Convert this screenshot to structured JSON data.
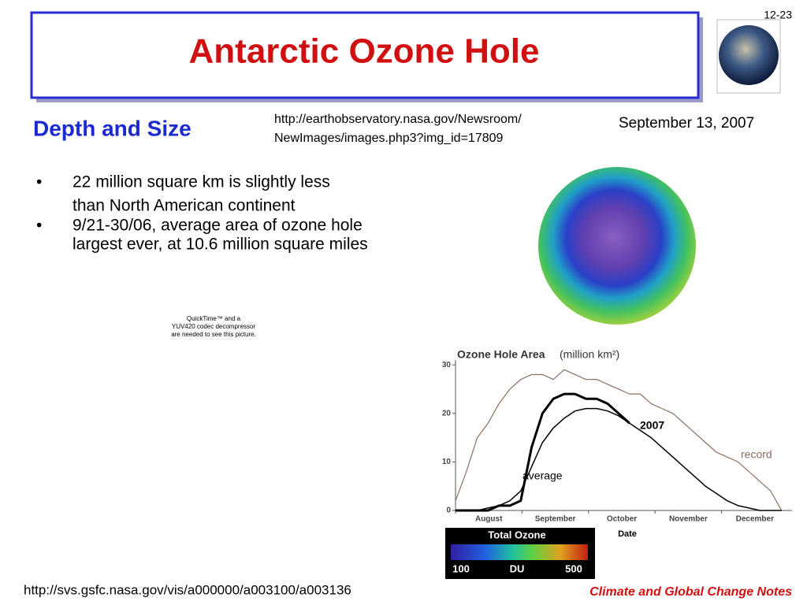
{
  "slide_number": "12-23",
  "title": "Antarctic Ozone Hole",
  "subtitle": "Depth and Size",
  "source_url": [
    "http://earthobservatory.nasa.gov/Newsroom/",
    "NewImages/images.php3?img_id=17809"
  ],
  "date": "September 13, 2007",
  "bullets": [
    {
      "marker": "•",
      "lines": [
        "22 million square km is slightly less",
        "than North American continent"
      ]
    },
    {
      "marker": "•",
      "lines": [
        "9/21-30/06, average area of ozone hole",
        "largest ever, at 10.6 million square miles"
      ]
    }
  ],
  "placeholder": [
    "QuickTime™ and a",
    "YUV420 codec decompressor",
    "are needed to see this picture."
  ],
  "chart_data": {
    "type": "line",
    "title": "Ozone Hole Area",
    "title_units": "(million km²)",
    "x_label": "Date",
    "categories": [
      "August",
      "September",
      "October",
      "November",
      "December"
    ],
    "xlim": [
      0,
      153
    ],
    "ylim": [
      0,
      31
    ],
    "yticks": [
      0,
      10,
      20,
      30
    ],
    "series": [
      {
        "name": "record",
        "color": "#8c6e62",
        "width": 1.2,
        "x": [
          0,
          5,
          10,
          15,
          20,
          25,
          30,
          35,
          40,
          45,
          50,
          55,
          60,
          65,
          70,
          75,
          80,
          85,
          90,
          95,
          100,
          105,
          110,
          115,
          120,
          125,
          130,
          135,
          140,
          145,
          150
        ],
        "values": [
          2,
          8,
          15,
          18,
          22,
          25,
          27,
          28,
          28,
          27,
          29,
          28,
          27,
          27,
          26,
          25,
          24,
          24,
          22,
          21,
          20,
          18,
          16,
          14,
          12,
          11,
          10,
          8,
          6,
          4,
          0
        ]
      },
      {
        "name": "average",
        "color": "#000000",
        "width": 1.5,
        "x": [
          0,
          5,
          10,
          15,
          20,
          25,
          30,
          35,
          40,
          45,
          50,
          55,
          60,
          65,
          70,
          75,
          80,
          85,
          90,
          95,
          100,
          105,
          110,
          115,
          120,
          125,
          130,
          135,
          140,
          145,
          150
        ],
        "values": [
          0,
          0,
          0,
          0.5,
          1,
          2,
          4,
          9,
          14,
          17,
          19,
          20.5,
          21,
          21,
          20.5,
          19.5,
          18,
          16.5,
          15,
          13,
          11,
          9,
          7,
          5,
          3.5,
          2,
          1,
          0.5,
          0,
          0,
          0
        ]
      },
      {
        "name": "2007",
        "color": "#000000",
        "width": 3,
        "x": [
          0,
          5,
          10,
          15,
          20,
          25,
          30,
          35,
          40,
          45,
          50,
          55,
          60,
          65,
          70,
          75,
          80
        ],
        "values": [
          0,
          0,
          0,
          0,
          1,
          1,
          2,
          13,
          20,
          23,
          24,
          24,
          23,
          23,
          22,
          20,
          18
        ]
      }
    ]
  },
  "color_scale": {
    "title": "Total Ozone",
    "min_label": 100,
    "unit": "DU",
    "max_label": 500
  },
  "footer_url": "http://svs.gsfc.nasa.gov/vis/a000000/a003100/a003136",
  "footer": "Climate and Global Change Notes"
}
